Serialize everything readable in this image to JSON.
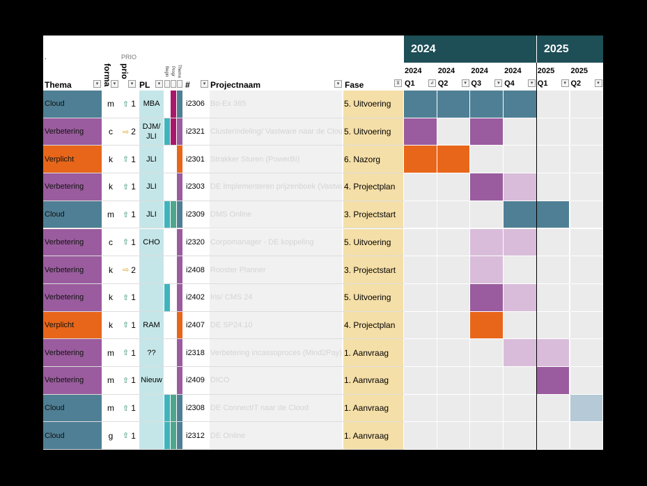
{
  "header": {
    "dot": ".",
    "prio_caption": "PRIO",
    "col_thema": "Thema",
    "col_forma": "forma",
    "col_prio": "prio",
    "col_pl": "PL",
    "col_begin": "Begin",
    "col_progr": "Progr",
    "col_thema_small": "Thema",
    "col_num": "#",
    "col_projectnaam": "Projectnaam",
    "col_fase": "Fase",
    "years": [
      "2024",
      "2025"
    ],
    "quarters": [
      {
        "year": "2024",
        "q": "Q1"
      },
      {
        "year": "2024",
        "q": "Q2"
      },
      {
        "year": "2024",
        "q": "Q3"
      },
      {
        "year": "2024",
        "q": "Q4"
      },
      {
        "year": "2025",
        "q": "Q1"
      },
      {
        "year": "2025",
        "q": "Q2"
      }
    ]
  },
  "colors": {
    "cloud": "#4f7f94",
    "verbetering": "#9a5c9e",
    "verplicht": "#e8661a",
    "light_purple": "#d9bcda",
    "light_blue": "#b5c9d6",
    "pl_bg": "#c5e6e8",
    "fase_bg": "#f5dfa8",
    "teal": "#3fb4bd",
    "green": "#4ea68c",
    "magenta": "#a8186a",
    "year_band": "#1e4e56"
  },
  "rows": [
    {
      "thema": "Cloud",
      "forma": "m",
      "prio_icon": "arrow-up-icon",
      "prio": "1",
      "pl": "MBA",
      "bars": [
        "",
        "magenta",
        "cloud"
      ],
      "num": "i2306",
      "naam": "Bo-Ex 365",
      "fase": "5. Uitvoering",
      "gantt": [
        "cloud",
        "cloud",
        "cloud",
        "cloud",
        "",
        ""
      ]
    },
    {
      "thema": "Verbetering",
      "forma": "c",
      "prio_icon": "arrow-right-icon",
      "prio": "2",
      "pl": "DJM/ JLI",
      "bars": [
        "teal",
        "magenta",
        "verbetering"
      ],
      "num": "i2321",
      "naam": "Clusterindeling/ Vastware naar de Cloud",
      "fase": "5. Uitvoering",
      "gantt": [
        "verbetering",
        "",
        "verbetering",
        "",
        "",
        ""
      ]
    },
    {
      "thema": "Verplicht",
      "forma": "k",
      "prio_icon": "arrow-up-icon",
      "prio": "1",
      "pl": "JLI",
      "bars": [
        "",
        "",
        "verplicht"
      ],
      "num": "i2301",
      "naam": "Strakker Sturen (PowerBI)",
      "fase": "6. Nazorg",
      "gantt": [
        "verplicht",
        "verplicht",
        "",
        "",
        "",
        ""
      ]
    },
    {
      "thema": "Verbetering",
      "forma": "k",
      "prio_icon": "arrow-up-icon",
      "prio": "1",
      "pl": "JLI",
      "bars": [
        "",
        "",
        "verbetering"
      ],
      "num": "i2303",
      "naam": "DE Implementeren prijzenboek (Vastware)",
      "fase": "4. Projectplan",
      "gantt": [
        "",
        "",
        "verbetering",
        "light_purple",
        "",
        ""
      ]
    },
    {
      "thema": "Cloud",
      "forma": "m",
      "prio_icon": "arrow-up-icon",
      "prio": "1",
      "pl": "JLI",
      "bars": [
        "teal",
        "green",
        "cloud"
      ],
      "num": "i2309",
      "naam": "DMS Online",
      "fase": "3. Projectstart",
      "gantt": [
        "",
        "",
        "",
        "cloud",
        "cloud",
        ""
      ]
    },
    {
      "thema": "Verbetering",
      "forma": "c",
      "prio_icon": "arrow-up-icon",
      "prio": "1",
      "pl": "CHO",
      "bars": [
        "",
        "",
        "verbetering"
      ],
      "num": "i2320",
      "naam": "Corpomanager - DE koppeling",
      "fase": "5. Uitvoering",
      "gantt": [
        "",
        "",
        "light_purple",
        "light_purple",
        "",
        ""
      ]
    },
    {
      "thema": "Verbetering",
      "forma": "k",
      "prio_icon": "arrow-right-icon",
      "prio": "2",
      "pl": "",
      "bars": [
        "",
        "",
        "verbetering"
      ],
      "num": "i2408",
      "naam": "Rooster Planner",
      "fase": "3. Projectstart",
      "gantt": [
        "",
        "",
        "light_purple",
        "",
        "",
        ""
      ]
    },
    {
      "thema": "Verbetering",
      "forma": "k",
      "prio_icon": "arrow-up-icon",
      "prio": "1",
      "pl": "",
      "bars": [
        "teal",
        "",
        "verbetering"
      ],
      "num": "i2402",
      "naam": "Iris/ CMS 24",
      "fase": "5. Uitvoering",
      "gantt": [
        "",
        "",
        "verbetering",
        "light_purple",
        "",
        ""
      ]
    },
    {
      "thema": "Verplicht",
      "forma": "k",
      "prio_icon": "arrow-up-icon",
      "prio": "1",
      "pl": "RAM",
      "bars": [
        "",
        "",
        "verplicht"
      ],
      "num": "i2407",
      "naam": "DE SP24.10",
      "fase": "4. Projectplan",
      "gantt": [
        "",
        "",
        "verplicht",
        "",
        "",
        ""
      ]
    },
    {
      "thema": "Verbetering",
      "forma": "m",
      "prio_icon": "arrow-up-icon",
      "prio": "1",
      "pl": "??",
      "bars": [
        "",
        "",
        "verbetering"
      ],
      "num": "i2318",
      "naam": "Verbetering incassoproces (Mind2Pay)",
      "fase": "1. Aanvraag",
      "gantt": [
        "",
        "",
        "",
        "light_purple",
        "light_purple",
        ""
      ]
    },
    {
      "thema": "Verbetering",
      "forma": "m",
      "prio_icon": "arrow-up-icon",
      "prio": "1",
      "pl": "Nieuw",
      "bars": [
        "",
        "",
        "verbetering"
      ],
      "num": "i2409",
      "naam": "DICO",
      "fase": "1. Aanvraag",
      "gantt": [
        "",
        "",
        "",
        "",
        "verbetering",
        ""
      ]
    },
    {
      "thema": "Cloud",
      "forma": "m",
      "prio_icon": "arrow-up-icon",
      "prio": "1",
      "pl": "",
      "bars": [
        "teal",
        "green",
        "cloud"
      ],
      "num": "i2308",
      "naam": "DE ConnectIT naar de Cloud",
      "fase": "1. Aanvraag",
      "gantt": [
        "",
        "",
        "",
        "",
        "",
        "light_blue"
      ]
    },
    {
      "thema": "Cloud",
      "forma": "g",
      "prio_icon": "arrow-up-icon",
      "prio": "1",
      "pl": "",
      "bars": [
        "teal",
        "green",
        "cloud"
      ],
      "num": "i2312",
      "naam": "DE Online",
      "fase": "1. Aanvraag",
      "gantt": [
        "",
        "",
        "",
        "",
        "",
        ""
      ]
    }
  ]
}
